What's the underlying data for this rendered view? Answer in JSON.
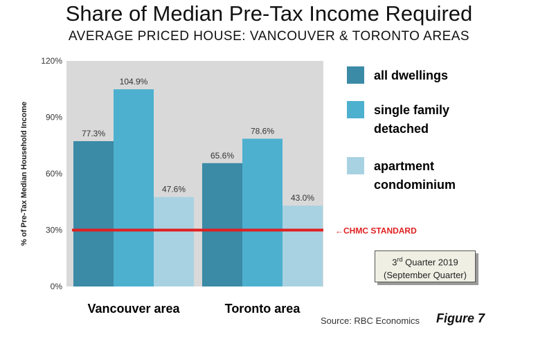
{
  "chart_data": {
    "type": "bar",
    "title": "Share of Median Pre-Tax Income Required",
    "subtitle": "AVERAGE PRICED HOUSE: VANCOUVER & TORONTO AREAS",
    "ylabel": "% of Pre-Tax Median Household Income",
    "xlabel": "",
    "ylim": [
      0,
      120
    ],
    "yticks": [
      "0%",
      "30%",
      "60%",
      "90%",
      "120%"
    ],
    "categories": [
      "Vancouver area",
      "Toronto area"
    ],
    "series": [
      {
        "name": "all dwellings",
        "values": [
          77.3,
          65.6
        ],
        "labels": [
          "77.3%",
          "65.6%"
        ],
        "color": "#3b8aa6"
      },
      {
        "name": "single family detached",
        "values": [
          104.9,
          78.6
        ],
        "labels": [
          "104.9%",
          "78.6%"
        ],
        "color": "#4db0cf"
      },
      {
        "name": "apartment condominium",
        "values": [
          47.6,
          43.0
        ],
        "labels": [
          "47.6%",
          "43.0%"
        ],
        "color": "#a8d2e2"
      }
    ],
    "legend_lines": [
      [
        "all dwellings"
      ],
      [
        "single family",
        "detached"
      ],
      [
        "apartment",
        "condominium"
      ]
    ],
    "reference_line": {
      "value": 30,
      "label": "CHMC STANDARD",
      "color": "#e02020"
    },
    "grid": false,
    "legend_placement": "right",
    "plot_background": "#d9d9d9"
  },
  "note": {
    "line1_prefix": "3",
    "line1_sup": "rd",
    "line1_suffix": " Quarter 2019",
    "line2": "(September Quarter)"
  },
  "source": "Source: RBC Economics",
  "figure_label": "Figure 7"
}
